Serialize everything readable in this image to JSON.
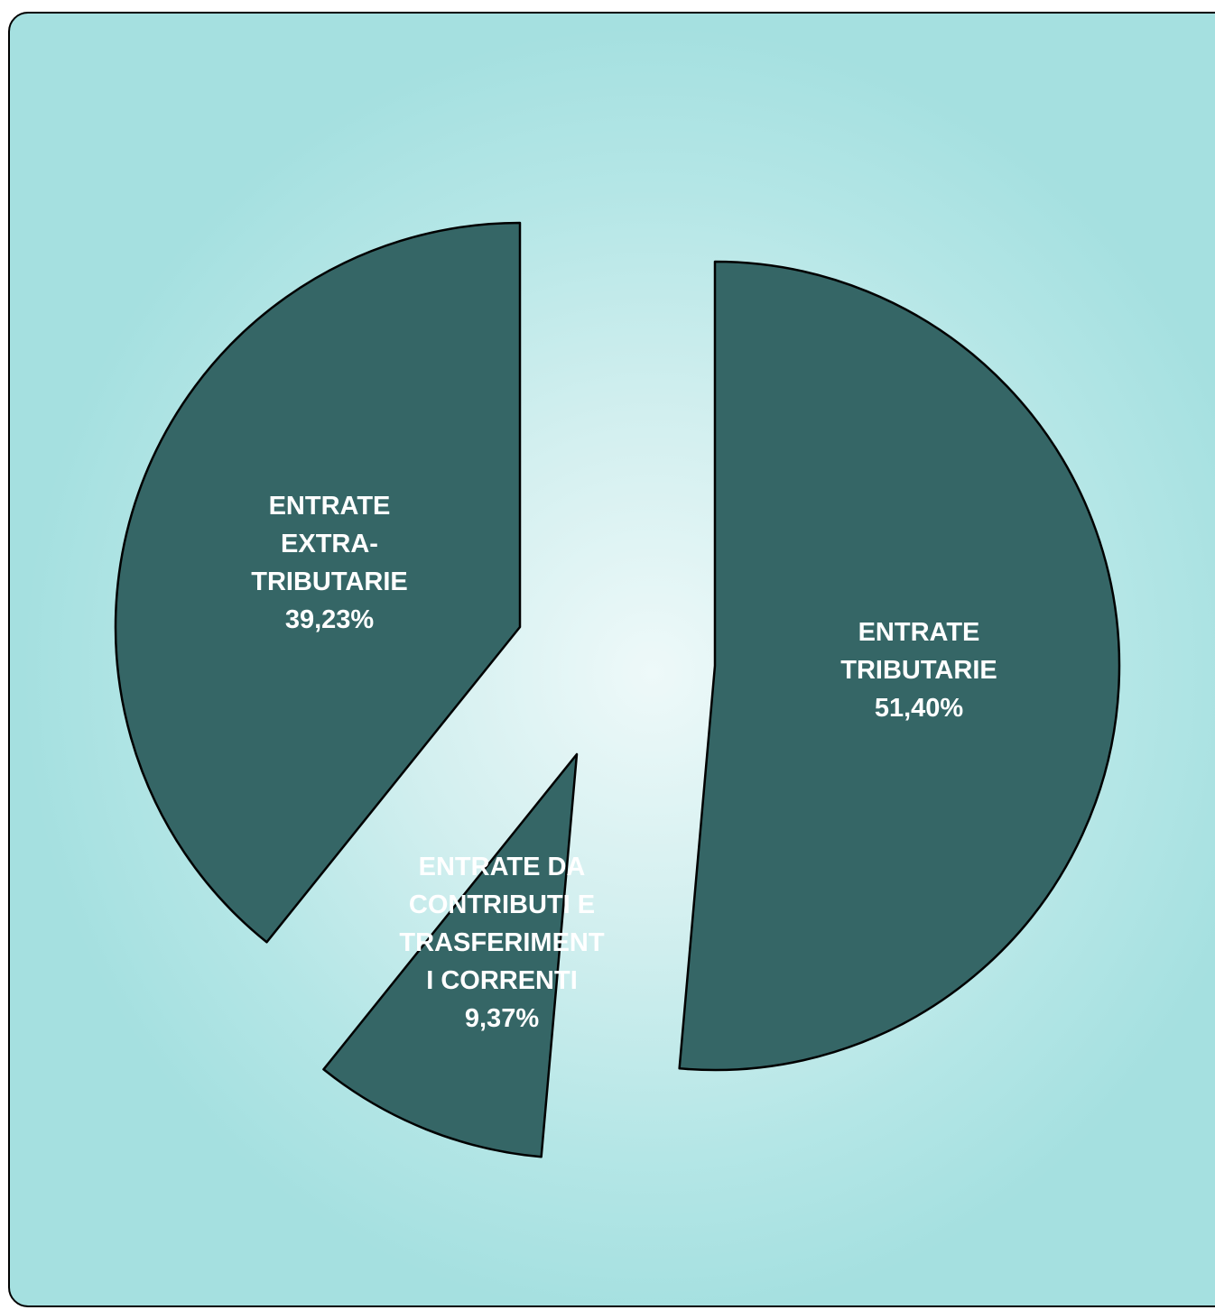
{
  "chart_data": {
    "type": "pie",
    "exploded": true,
    "slices": [
      {
        "label_lines": [
          "ENTRATE",
          "TRIBUTARIE",
          "51,40%"
        ],
        "value": 51.4
      },
      {
        "label_lines": [
          "ENTRATE DA",
          "CONTRIBUTI E",
          "TRASFERIMENT",
          "I CORRENTI",
          "9,37%"
        ],
        "value": 9.37
      },
      {
        "label_lines": [
          "ENTRATE",
          "EXTRA-",
          "TRIBUTARIE",
          "39,23%"
        ],
        "value": 39.23
      }
    ],
    "colors": {
      "slice_fill": "#356666",
      "slice_stroke": "#000000",
      "label_color": "#ffffff",
      "background_center": "#eef9f9",
      "background_edge": "#a5e0e0"
    }
  }
}
